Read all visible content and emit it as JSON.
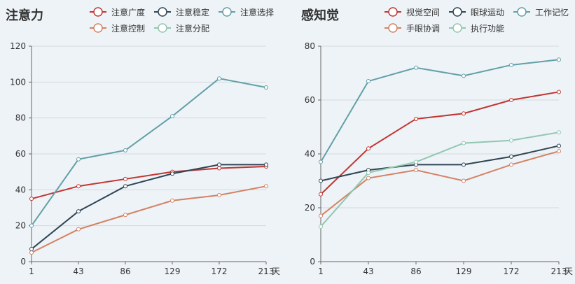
{
  "colors": {
    "background": "#eef3f7",
    "grid": "#d3d8dd",
    "axis": "#666666",
    "text": "#333333"
  },
  "chart_data": [
    {
      "type": "line",
      "title": "注意力",
      "x_unit": "天",
      "x": [
        1,
        43,
        86,
        129,
        172,
        213
      ],
      "ylim": [
        0,
        120
      ],
      "yticks": [
        0,
        20,
        40,
        60,
        80,
        100,
        120
      ],
      "legend_position": "top",
      "grid": true,
      "series": [
        {
          "name": "注意广度",
          "color": "#c23531",
          "values": [
            35,
            42,
            46,
            50,
            52,
            53
          ]
        },
        {
          "name": "注意稳定",
          "color": "#2f4554",
          "values": [
            7,
            28,
            42,
            49,
            54,
            54
          ]
        },
        {
          "name": "注意选择",
          "color": "#61a0a8",
          "values": [
            20,
            57,
            62,
            81,
            102,
            97
          ]
        },
        {
          "name": "注意控制",
          "color": "#d48265",
          "values": [
            5,
            18,
            26,
            34,
            37,
            42
          ]
        },
        {
          "name": "注意分配",
          "color": "#91c7ae",
          "values": [
            null,
            null,
            null,
            null,
            null,
            null
          ]
        }
      ]
    },
    {
      "type": "line",
      "title": "感知觉",
      "x_unit": "天",
      "x": [
        1,
        43,
        86,
        129,
        172,
        213
      ],
      "ylim": [
        0,
        80
      ],
      "yticks": [
        0,
        20,
        40,
        60,
        80
      ],
      "legend_position": "top",
      "grid": true,
      "series": [
        {
          "name": "视觉空间",
          "color": "#c23531",
          "values": [
            25,
            42,
            53,
            55,
            60,
            63
          ]
        },
        {
          "name": "眼球运动",
          "color": "#2f4554",
          "values": [
            30,
            34,
            36,
            36,
            39,
            43
          ]
        },
        {
          "name": "工作记忆",
          "color": "#61a0a8",
          "values": [
            37,
            67,
            72,
            69,
            73,
            75
          ]
        },
        {
          "name": "手眼协调",
          "color": "#d48265",
          "values": [
            17,
            31,
            34,
            30,
            36,
            41
          ]
        },
        {
          "name": "执行功能",
          "color": "#91c7ae",
          "values": [
            13,
            33,
            37,
            44,
            45,
            48
          ]
        }
      ]
    }
  ]
}
